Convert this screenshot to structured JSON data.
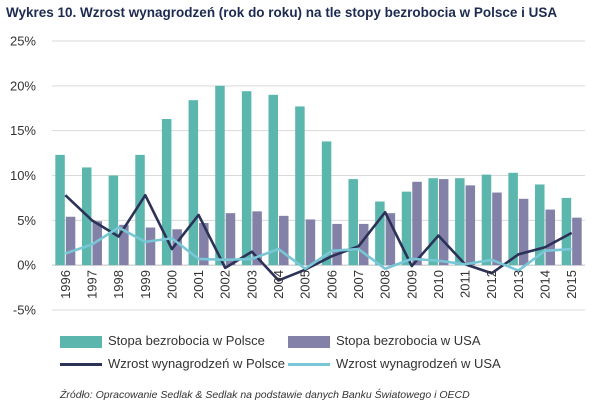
{
  "title": "Wykres 10. Wzrost wynagrodzeń (rok do roku) na tle stopy bezrobocia w Polsce i USA",
  "source": "Źródło: Opracowanie Sedlak & Sedlak na podstawie danych Banku Światowego i OECD",
  "colors": {
    "unemp_pl": "#5bb7ad",
    "unemp_us": "#8481a8",
    "wage_pl": "#2b3157",
    "wage_us": "#79c6d6",
    "grid": "#d9d9d9"
  },
  "chart_data": {
    "type": "bar",
    "categories": [
      "1996",
      "1997",
      "1998",
      "1999",
      "2000",
      "2001",
      "2002",
      "2003",
      "2004",
      "2005",
      "2006",
      "2007",
      "2008",
      "2009",
      "2010",
      "2011",
      "2012",
      "2013",
      "2014",
      "2015"
    ],
    "ylim": [
      -5,
      25
    ],
    "yticks": [
      "-5%",
      "0%",
      "5%",
      "10%",
      "15%",
      "20%",
      "25%"
    ],
    "ytick_values": [
      -5,
      0,
      5,
      10,
      15,
      20,
      25
    ],
    "grid": true,
    "legend_position": "bottom",
    "series": [
      {
        "name": "Stopa bezrobocia w Polsce",
        "type": "bar",
        "color_key": "unemp_pl",
        "values": [
          12.3,
          10.9,
          10.0,
          12.3,
          16.3,
          18.4,
          20.0,
          19.4,
          19.0,
          17.7,
          13.8,
          9.6,
          7.1,
          8.2,
          9.7,
          9.7,
          10.1,
          10.3,
          9.0,
          7.5
        ]
      },
      {
        "name": "Stopa bezrobocia w USA",
        "type": "bar",
        "color_key": "unemp_us",
        "values": [
          5.4,
          4.9,
          4.5,
          4.2,
          4.0,
          4.7,
          5.8,
          6.0,
          5.5,
          5.1,
          4.6,
          4.6,
          5.8,
          9.3,
          9.6,
          8.9,
          8.1,
          7.4,
          6.2,
          5.3
        ]
      },
      {
        "name": "Wzrost wynagrodzeń w Polsce",
        "type": "line",
        "color_key": "wage_pl",
        "values": [
          7.8,
          5.0,
          3.2,
          7.8,
          1.8,
          5.6,
          -0.3,
          1.5,
          -1.7,
          -0.5,
          1.0,
          2.1,
          5.9,
          -0.1,
          3.3,
          0.1,
          -0.9,
          1.2,
          2.0,
          3.6
        ]
      },
      {
        "name": "Wzrost wynagrodzeń w USA",
        "type": "line",
        "color_key": "wage_us",
        "values": [
          1.3,
          2.3,
          4.2,
          2.6,
          3.0,
          0.7,
          0.6,
          0.7,
          1.8,
          -0.4,
          1.6,
          1.8,
          -0.4,
          0.7,
          0.5,
          0.1,
          0.6,
          -0.6,
          1.6,
          1.8
        ]
      }
    ]
  }
}
